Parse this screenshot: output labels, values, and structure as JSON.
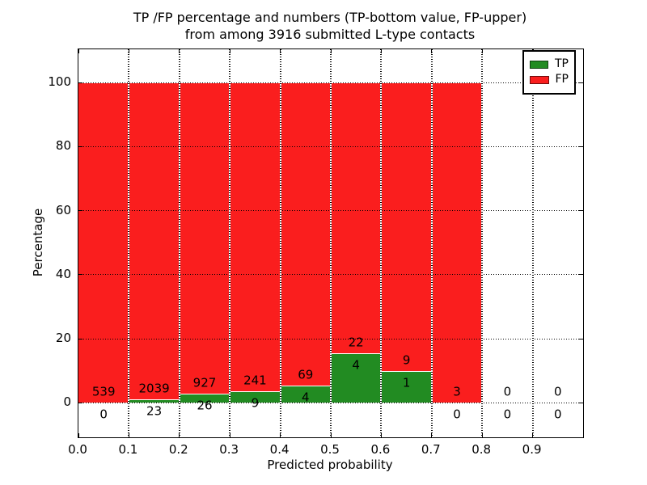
{
  "chart_data": {
    "type": "bar",
    "title_line1": "TP /FP percentage and numbers (TP-bottom value, FP-upper)",
    "title_line2": "from among 3916 submitted L-type contacts",
    "xlabel": "Predicted probability",
    "ylabel": "Percentage",
    "total_submitted": 3916,
    "xlim": [
      0.0,
      1.0
    ],
    "ylim": [
      -10.8,
      110.4
    ],
    "x_ticks": [
      {
        "value": 0.0,
        "label": "0.0"
      },
      {
        "value": 0.1,
        "label": "0.1"
      },
      {
        "value": 0.2,
        "label": "0.2"
      },
      {
        "value": 0.3,
        "label": "0.3"
      },
      {
        "value": 0.4,
        "label": "0.4"
      },
      {
        "value": 0.5,
        "label": "0.5"
      },
      {
        "value": 0.6,
        "label": "0.6"
      },
      {
        "value": 0.7,
        "label": "0.7"
      },
      {
        "value": 0.8,
        "label": "0.8"
      },
      {
        "value": 0.9,
        "label": "0.9"
      }
    ],
    "y_ticks": [
      {
        "value": 0,
        "label": "0"
      },
      {
        "value": 20,
        "label": "20"
      },
      {
        "value": 40,
        "label": "40"
      },
      {
        "value": 60,
        "label": "60"
      },
      {
        "value": 80,
        "label": "80"
      },
      {
        "value": 100,
        "label": "100"
      }
    ],
    "grid_style": "dotted",
    "legend": [
      {
        "label": "TP",
        "color": "#228b22"
      },
      {
        "label": "FP",
        "color": "#fa1e1e"
      }
    ],
    "bins": [
      {
        "range": [
          0.0,
          0.1
        ],
        "tp": 0,
        "fp": 539,
        "tp_pct": 0.0,
        "has_bar": true
      },
      {
        "range": [
          0.1,
          0.2
        ],
        "tp": 23,
        "fp": 2039,
        "tp_pct": 1.12,
        "has_bar": true
      },
      {
        "range": [
          0.2,
          0.3
        ],
        "tp": 26,
        "fp": 927,
        "tp_pct": 2.73,
        "has_bar": true
      },
      {
        "range": [
          0.3,
          0.4
        ],
        "tp": 9,
        "fp": 241,
        "tp_pct": 3.6,
        "has_bar": true
      },
      {
        "range": [
          0.4,
          0.5
        ],
        "tp": 4,
        "fp": 69,
        "tp_pct": 5.48,
        "has_bar": true
      },
      {
        "range": [
          0.5,
          0.6
        ],
        "tp": 4,
        "fp": 22,
        "tp_pct": 15.38,
        "has_bar": true
      },
      {
        "range": [
          0.6,
          0.7
        ],
        "tp": 1,
        "fp": 9,
        "tp_pct": 10.0,
        "has_bar": true
      },
      {
        "range": [
          0.7,
          0.8
        ],
        "tp": 0,
        "fp": 3,
        "tp_pct": 0.0,
        "has_bar": true
      },
      {
        "range": [
          0.8,
          0.9
        ],
        "tp": 0,
        "fp": 0,
        "tp_pct": 0.0,
        "has_bar": false
      },
      {
        "range": [
          0.9,
          1.0
        ],
        "tp": 0,
        "fp": 0,
        "tp_pct": 0.0,
        "has_bar": false
      }
    ],
    "colors": {
      "tp": "#228b22",
      "fp": "#fa1e1e",
      "grid": "#000000",
      "background": "#ffffff"
    }
  }
}
